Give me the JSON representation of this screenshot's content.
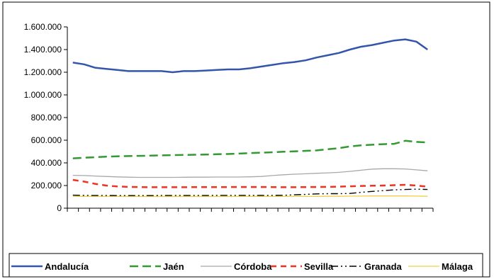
{
  "chart_data": {
    "type": "line",
    "title": "",
    "xlabel": "",
    "ylabel": "",
    "ylim": [
      0,
      1600000
    ],
    "y_ticks": [
      "1.600.000",
      "1.400.000",
      "1.200.000",
      "1.000.000",
      "800.000",
      "600.000",
      "400.000",
      "200.000",
      "0"
    ],
    "y_tick_values": [
      1600000,
      1400000,
      1200000,
      1000000,
      800000,
      600000,
      400000,
      200000,
      0
    ],
    "x_count": 33,
    "legend_position": "bottom",
    "grid": false,
    "series": [
      {
        "name": "Andalucía",
        "color": "#3355aa",
        "dash": "solid",
        "values": [
          1285000,
          1270000,
          1240000,
          1230000,
          1220000,
          1210000,
          1210000,
          1210000,
          1210000,
          1200000,
          1210000,
          1210000,
          1215000,
          1220000,
          1225000,
          1225000,
          1235000,
          1250000,
          1265000,
          1280000,
          1290000,
          1305000,
          1330000,
          1350000,
          1370000,
          1400000,
          1425000,
          1440000,
          1460000,
          1480000,
          1490000,
          1470000,
          1400000
        ]
      },
      {
        "name": "Jaén",
        "color": "#339933",
        "dash": "long-dash",
        "values": [
          440000,
          445000,
          450000,
          455000,
          458000,
          460000,
          462000,
          464000,
          466000,
          468000,
          470000,
          472000,
          474000,
          476000,
          478000,
          482000,
          486000,
          490000,
          494000,
          498000,
          502000,
          506000,
          510000,
          520000,
          530000,
          545000,
          555000,
          560000,
          565000,
          568000,
          595000,
          585000,
          580000
        ]
      },
      {
        "name": "Córdoba",
        "color": "#a8a8a8",
        "dash": "solid",
        "values": [
          290000,
          288000,
          284000,
          280000,
          276000,
          274000,
          272000,
          272000,
          272000,
          272000,
          273000,
          274000,
          274000,
          275000,
          275000,
          275000,
          277000,
          280000,
          288000,
          295000,
          300000,
          304000,
          308000,
          312000,
          316000,
          325000,
          335000,
          345000,
          348000,
          348000,
          346000,
          338000,
          330000
        ]
      },
      {
        "name": "Sevilla",
        "color": "#ee3322",
        "dash": "dash",
        "values": [
          250000,
          235000,
          215000,
          200000,
          192000,
          188000,
          186000,
          185000,
          185000,
          185000,
          185000,
          186000,
          186000,
          186000,
          186000,
          187000,
          187000,
          187000,
          186000,
          185000,
          185000,
          186000,
          187000,
          188000,
          190000,
          193000,
          196000,
          198000,
          200000,
          203000,
          206000,
          200000,
          190000
        ]
      },
      {
        "name": "Granada",
        "color": "#000000",
        "dash": "dash-dot-dot",
        "values": [
          115000,
          113000,
          112000,
          112000,
          111000,
          111000,
          111000,
          111000,
          112000,
          112000,
          112000,
          112000,
          112000,
          113000,
          113000,
          113000,
          113000,
          113000,
          113000,
          114000,
          118000,
          122000,
          126000,
          128000,
          128000,
          130000,
          140000,
          148000,
          155000,
          162000,
          165000,
          168000,
          165000
        ]
      },
      {
        "name": "Málaga",
        "color": "#f0d040",
        "dash": "solid",
        "values": [
          105000,
          104000,
          104000,
          104000,
          104000,
          103000,
          103000,
          103000,
          103000,
          103000,
          103000,
          103000,
          103000,
          103000,
          103000,
          104000,
          104000,
          104000,
          104000,
          104000,
          104000,
          104000,
          104000,
          105000,
          105000,
          106000,
          107000,
          108000,
          108000,
          108000,
          108000,
          107000,
          105000
        ]
      }
    ]
  }
}
